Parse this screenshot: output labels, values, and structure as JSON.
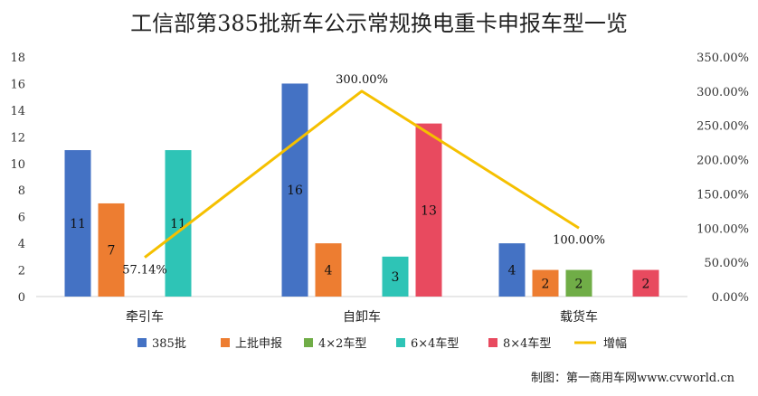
{
  "chart_data": {
    "type": "bar",
    "title": "工信部第385批新车公示常规换电重卡申报车型一览",
    "categories": [
      "牵引车",
      "自卸车",
      "载货车"
    ],
    "series": [
      {
        "name": "385批",
        "color": "#4472C4",
        "values": [
          11,
          16,
          4
        ]
      },
      {
        "name": "上批申报",
        "color": "#ED7D31",
        "values": [
          7,
          4,
          2
        ]
      },
      {
        "name": "4×2车型",
        "color": "#70AD47",
        "values": [
          null,
          null,
          2
        ]
      },
      {
        "name": "6×4车型",
        "color": "#2EC4B6",
        "values": [
          11,
          3,
          null
        ]
      },
      {
        "name": "8×4车型",
        "color": "#E84A5F",
        "values": [
          null,
          13,
          2
        ]
      }
    ],
    "line_series": {
      "name": "增幅",
      "color": "#F5C000",
      "values": [
        57.14,
        300.0,
        100.0
      ],
      "labels": [
        "57.14%",
        "300.00%",
        "100.00%"
      ]
    },
    "ylim": [
      0,
      18
    ],
    "yticks": [
      0,
      2,
      4,
      6,
      8,
      10,
      12,
      14,
      16,
      18
    ],
    "y2lim": [
      0,
      350
    ],
    "y2ticks": [
      "0.00%",
      "50.00%",
      "100.00%",
      "150.00%",
      "200.00%",
      "250.00%",
      "300.00%",
      "350.00%"
    ],
    "legend_position": "bottom",
    "grid": false
  },
  "credit": "制图：第一商用车网www.cvworld.cn"
}
